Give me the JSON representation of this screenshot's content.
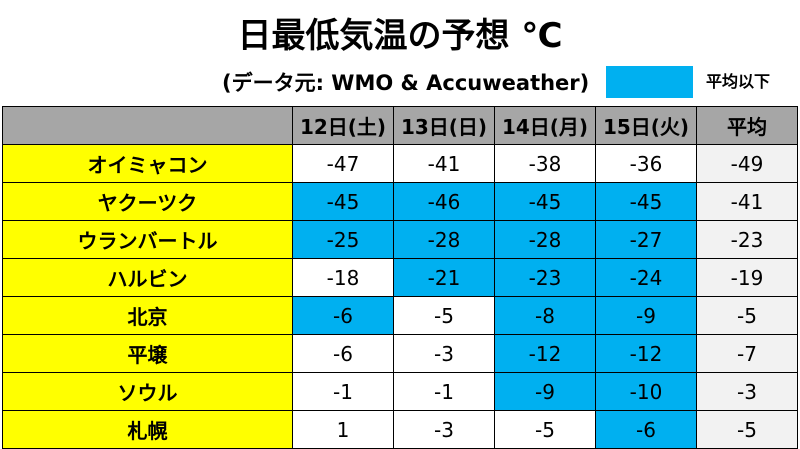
{
  "title": "日最低気温の予想 ℃",
  "source": "(データ元: WMO & Accuweather)",
  "legend": {
    "label": "平均以下",
    "color": "#00b0f0"
  },
  "columns": [
    "12日(土)",
    "13日(日)",
    "14日(月)",
    "15日(火)",
    "平均"
  ],
  "rows": [
    {
      "city": "オイミャコン",
      "values": [
        "-47",
        "-41",
        "-38",
        "-36"
      ],
      "below": [
        false,
        false,
        false,
        false
      ],
      "avg": "-49"
    },
    {
      "city": "ヤクーツク",
      "values": [
        "-45",
        "-46",
        "-45",
        "-45"
      ],
      "below": [
        true,
        true,
        true,
        true
      ],
      "avg": "-41"
    },
    {
      "city": "ウランバートル",
      "values": [
        "-25",
        "-28",
        "-28",
        "-27"
      ],
      "below": [
        true,
        true,
        true,
        true
      ],
      "avg": "-23"
    },
    {
      "city": "ハルビン",
      "values": [
        "-18",
        "-21",
        "-23",
        "-24"
      ],
      "below": [
        false,
        true,
        true,
        true
      ],
      "avg": "-19"
    },
    {
      "city": "北京",
      "values": [
        "-6",
        "-5",
        "-8",
        "-9"
      ],
      "below": [
        true,
        false,
        true,
        true
      ],
      "avg": "-5"
    },
    {
      "city": "平壌",
      "values": [
        "-6",
        "-3",
        "-12",
        "-12"
      ],
      "below": [
        false,
        false,
        true,
        true
      ],
      "avg": "-7"
    },
    {
      "city": "ソウル",
      "values": [
        "-1",
        "-1",
        "-9",
        "-10"
      ],
      "below": [
        false,
        false,
        true,
        true
      ],
      "avg": "-3"
    },
    {
      "city": "札幌",
      "values": [
        "1",
        "-3",
        "-5",
        "-6"
      ],
      "below": [
        false,
        false,
        false,
        true
      ],
      "avg": "-5"
    }
  ]
}
